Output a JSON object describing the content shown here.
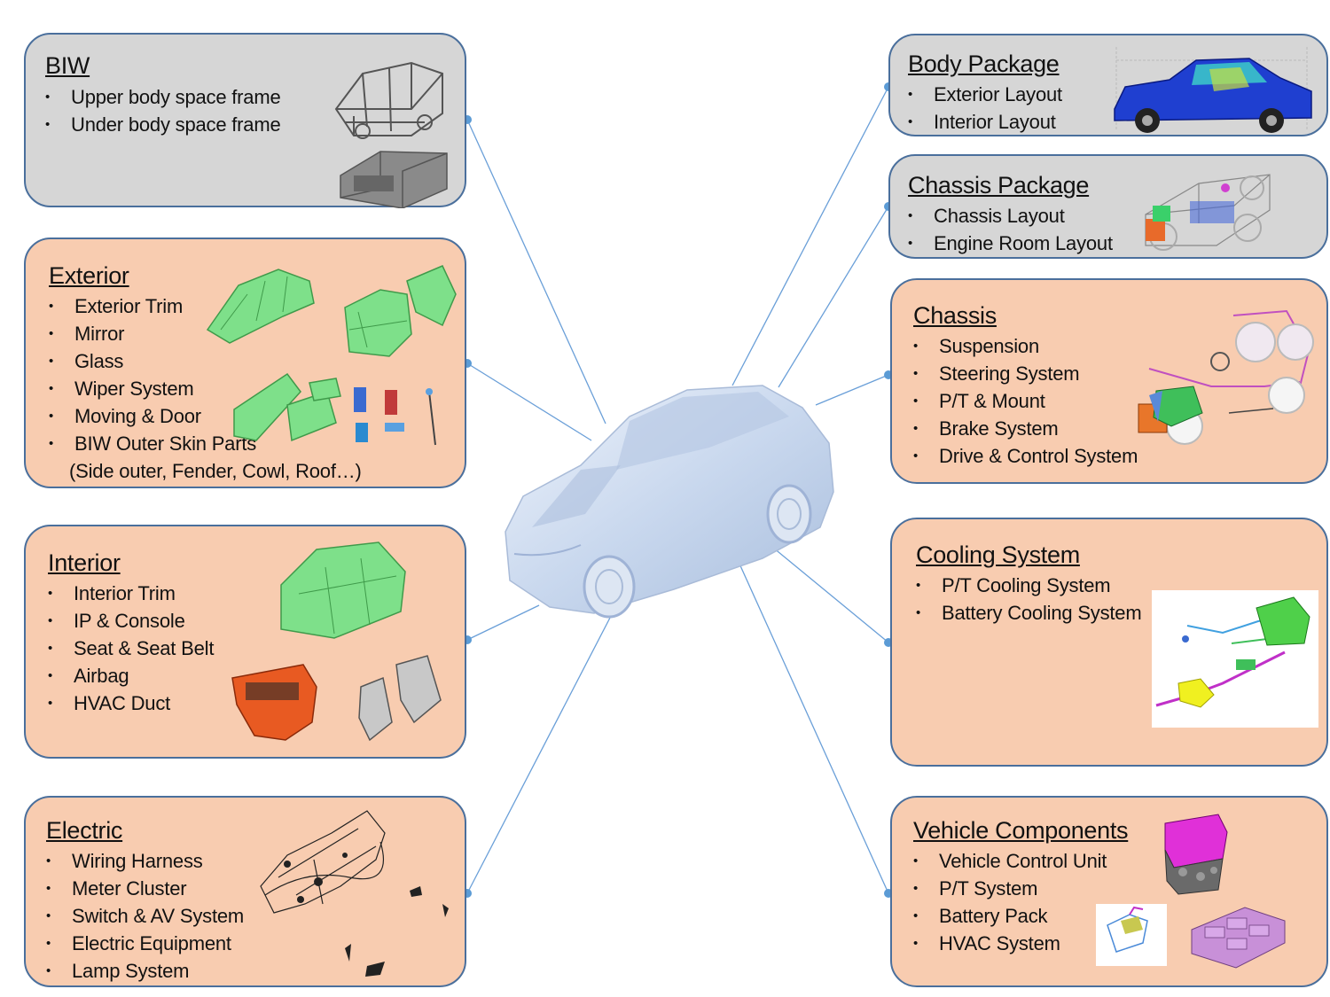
{
  "panels": {
    "biw": {
      "title": "BIW",
      "items": [
        "Upper body space frame",
        "Under body space frame"
      ]
    },
    "exterior": {
      "title": "Exterior",
      "items": [
        "Exterior Trim",
        "Mirror",
        "Glass",
        "Wiper System",
        "Moving & Door",
        "BIW Outer Skin Parts"
      ],
      "continuation": "(Side outer, Fender, Cowl, Roof…)"
    },
    "interior": {
      "title": "Interior",
      "items": [
        "Interior Trim",
        "IP & Console",
        "Seat & Seat Belt",
        "Airbag",
        "HVAC  Duct"
      ]
    },
    "electric": {
      "title": "Electric",
      "items": [
        "Wiring Harness",
        "Meter Cluster",
        "Switch & AV  System",
        "Electric Equipment",
        "Lamp System"
      ]
    },
    "body_package": {
      "title": "Body Package",
      "items": [
        "Exterior Layout",
        "Interior Layout"
      ]
    },
    "chassis_package": {
      "title": "Chassis Package",
      "items": [
        "Chassis Layout",
        "Engine Room Layout"
      ]
    },
    "chassis": {
      "title": "Chassis",
      "items": [
        "Suspension",
        "Steering System",
        "P/T & Mount",
        "Brake System",
        "Drive & Control System"
      ]
    },
    "cooling": {
      "title": "Cooling System",
      "items": [
        "P/T Cooling System",
        "Battery Cooling System"
      ]
    },
    "vehicle_components": {
      "title": "Vehicle Components",
      "items": [
        "Vehicle Control Unit",
        "P/T System",
        "Battery Pack",
        "HVAC System"
      ]
    }
  },
  "colors": {
    "gray_panel": "#d6d6d6",
    "peach_panel": "#f8ccb0",
    "panel_border": "#4a6f9c",
    "connector": "#5b9bd5",
    "car_body": "#c9d8ee"
  },
  "icons": [
    "biw-frame-icon",
    "exterior-parts-icon",
    "interior-parts-icon",
    "wiring-harness-icon",
    "body-package-icon",
    "chassis-package-icon",
    "chassis-icon",
    "cooling-system-icon",
    "vehicle-components-icon",
    "car-icon"
  ]
}
